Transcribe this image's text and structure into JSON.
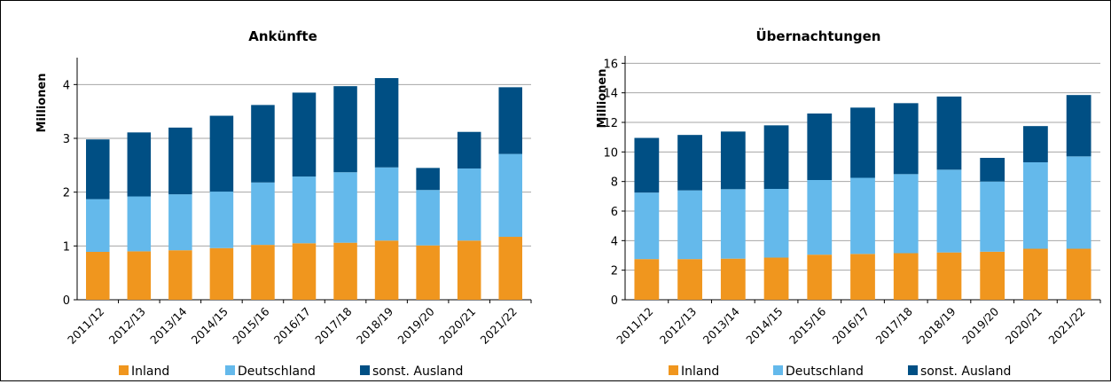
{
  "colors": {
    "Inland": "#f0961e",
    "Deutschland": "#64b9eb",
    "sonst. Ausland": "#004f84"
  },
  "legend": [
    "Inland",
    "Deutschland",
    "sonst. Ausland"
  ],
  "chart_data": [
    {
      "type": "bar",
      "stacked": true,
      "title": "Ankünfte",
      "xlabel": "",
      "ylabel": "Millionen",
      "ylim": [
        0,
        4.5
      ],
      "yticks": [
        0,
        1,
        2,
        3,
        4
      ],
      "grid": true,
      "legend_position": "bottom",
      "categories": [
        "2011/12",
        "2012/13",
        "2013/14",
        "2014/15",
        "2015/16",
        "2016/17",
        "2017/18",
        "2018/19",
        "2019/20",
        "2020/21",
        "2021/22"
      ],
      "series": [
        {
          "name": "Inland",
          "values": [
            0.89,
            0.9,
            0.92,
            0.96,
            1.02,
            1.05,
            1.06,
            1.1,
            1.01,
            1.1,
            1.17
          ]
        },
        {
          "name": "Deutschland",
          "values": [
            0.98,
            1.02,
            1.04,
            1.05,
            1.16,
            1.24,
            1.31,
            1.36,
            1.03,
            1.34,
            1.54
          ]
        },
        {
          "name": "sonst. Ausland",
          "values": [
            1.11,
            1.19,
            1.24,
            1.41,
            1.44,
            1.56,
            1.6,
            1.66,
            0.41,
            0.68,
            1.24
          ]
        }
      ]
    },
    {
      "type": "bar",
      "stacked": true,
      "title": "Übernachtungen",
      "xlabel": "",
      "ylabel": "Millionen",
      "ylim": [
        0,
        16.5
      ],
      "yticks": [
        0,
        2,
        4,
        6,
        8,
        10,
        12,
        14,
        16
      ],
      "grid": true,
      "legend_position": "bottom",
      "categories": [
        "2011/12",
        "2012/13",
        "2013/14",
        "2014/15",
        "2015/16",
        "2016/17",
        "2017/18",
        "2018/19",
        "2019/20",
        "2020/21",
        "2021/22"
      ],
      "series": [
        {
          "name": "Inland",
          "values": [
            2.75,
            2.75,
            2.78,
            2.85,
            3.05,
            3.1,
            3.15,
            3.2,
            3.25,
            3.45,
            3.45
          ]
        },
        {
          "name": "Deutschland",
          "values": [
            4.5,
            4.65,
            4.7,
            4.65,
            5.05,
            5.15,
            5.35,
            5.6,
            4.75,
            5.85,
            6.25
          ]
        },
        {
          "name": "sonst. Ausland",
          "values": [
            3.7,
            3.75,
            3.9,
            4.3,
            4.5,
            4.75,
            4.8,
            4.95,
            1.6,
            2.45,
            4.15
          ]
        }
      ]
    }
  ]
}
